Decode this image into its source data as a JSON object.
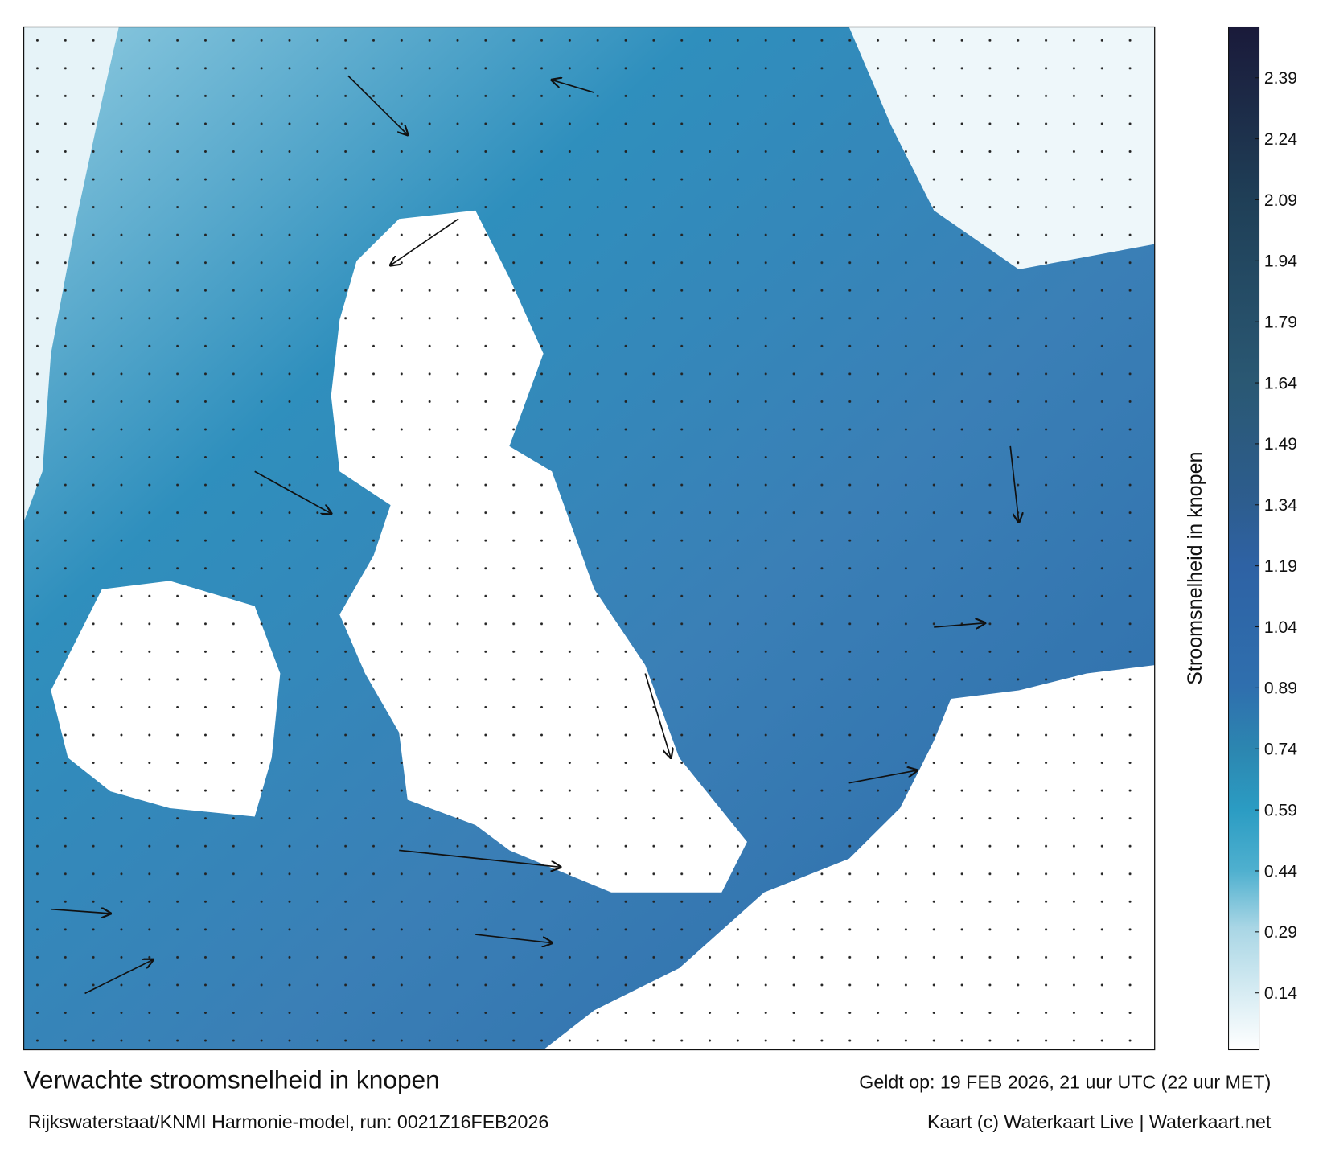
{
  "title": "Verwachte stroomsnelheid in knopen",
  "subtitle": "Rijkswaterstaat/KNMI Harmonie-model, run: 0021Z16FEB2026",
  "valid_time": "Geldt op: 19 FEB 2026, 21 uur UTC (22 uur MET)",
  "credits": "Kaart (c) Waterkaart Live | Waterkaart.net",
  "colorbar": {
    "label": "Stroomsnelheid in knopen",
    "lim": [
      0,
      2.515
    ],
    "ticks": [
      0.14,
      0.29,
      0.44,
      0.59,
      0.74,
      0.89,
      1.04,
      1.19,
      1.34,
      1.49,
      1.64,
      1.79,
      1.94,
      2.09,
      2.24,
      2.39
    ],
    "colorscale": [
      {
        "value": 0,
        "color": "#ffffff"
      },
      {
        "value": 0.3,
        "color": "#a9d6e5"
      },
      {
        "value": 0.44,
        "color": "#4fb0cf"
      },
      {
        "value": 0.59,
        "color": "#2b9cc3"
      },
      {
        "value": 0.74,
        "color": "#2c86b0"
      },
      {
        "value": 0.89,
        "color": "#2f6fae"
      },
      {
        "value": 1.19,
        "color": "#2e62a4"
      },
      {
        "value": 1.34,
        "color": "#2d5d8f"
      },
      {
        "value": 1.64,
        "color": "#2a5873"
      },
      {
        "value": 2.09,
        "color": "#1f3f57"
      },
      {
        "value": 2.515,
        "color": "#1a1a3a"
      }
    ]
  }
}
